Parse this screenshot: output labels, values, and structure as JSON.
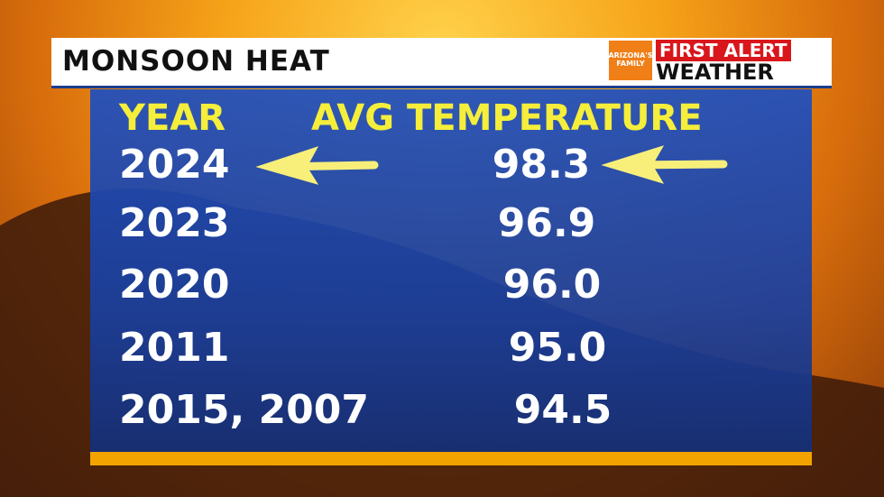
{
  "header": {
    "title": "MONSOON HEAT",
    "logo": {
      "small": "ARIZONA'S FAMILY",
      "line1": "FIRST ALERT",
      "line2": "WEATHER"
    }
  },
  "table": {
    "columns": [
      "YEAR",
      "AVG TEMPERATURE"
    ],
    "rows": [
      [
        "2024",
        "98.3"
      ],
      [
        "2023",
        "96.9"
      ],
      [
        "2020",
        "96.0"
      ],
      [
        "2011",
        "95.0"
      ],
      [
        "2015, 2007",
        "94.5"
      ]
    ]
  }
}
